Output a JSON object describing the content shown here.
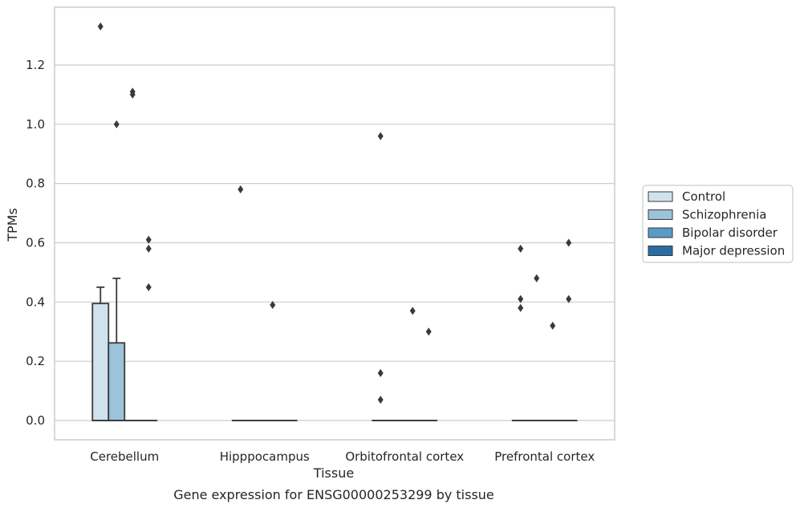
{
  "chart_data": {
    "type": "box",
    "caption": "Gene expression for ENSG00000253299 by tissue",
    "xlabel": "Tissue",
    "ylabel": "TPMs",
    "ylim": [
      -0.065,
      1.395
    ],
    "yticks": [
      0.0,
      0.2,
      0.4,
      0.6,
      0.8,
      1.0,
      1.2
    ],
    "ytick_labels": [
      "0.0",
      "0.2",
      "0.4",
      "0.6",
      "0.8",
      "1.0",
      "1.2"
    ],
    "grid": "horizontal",
    "legend_position": "right",
    "categories": [
      "Cerebellum",
      "Hipppocampus",
      "Orbitofrontal cortex",
      "Prefrontal cortex"
    ],
    "series": [
      {
        "name": "Control",
        "color": "#d1e2ef",
        "boxes": [
          {
            "q1": 0.0,
            "median": 0.0,
            "q3": 0.395,
            "whisker_low": 0.0,
            "whisker_high": 0.45,
            "outliers": [
              1.33
            ]
          },
          {
            "q1": 0.0,
            "median": 0.0,
            "q3": 0.0,
            "whisker_low": 0.0,
            "whisker_high": 0.0,
            "outliers": [
              0.78
            ]
          },
          {
            "q1": 0.0,
            "median": 0.0,
            "q3": 0.0,
            "whisker_low": 0.0,
            "whisker_high": 0.0,
            "outliers": [
              0.96,
              0.16,
              0.07
            ]
          },
          {
            "q1": 0.0,
            "median": 0.0,
            "q3": 0.0,
            "whisker_low": 0.0,
            "whisker_high": 0.0,
            "outliers": [
              0.58,
              0.41,
              0.38
            ]
          }
        ]
      },
      {
        "name": "Schizophrenia",
        "color": "#9bc3da",
        "boxes": [
          {
            "q1": 0.0,
            "median": 0.0,
            "q3": 0.262,
            "whisker_low": 0.0,
            "whisker_high": 0.48,
            "outliers": [
              1.0
            ]
          },
          {
            "q1": 0.0,
            "median": 0.0,
            "q3": 0.0,
            "whisker_low": 0.0,
            "whisker_high": 0.0,
            "outliers": []
          },
          {
            "q1": 0.0,
            "median": 0.0,
            "q3": 0.0,
            "whisker_low": 0.0,
            "whisker_high": 0.0,
            "outliers": []
          },
          {
            "q1": 0.0,
            "median": 0.0,
            "q3": 0.0,
            "whisker_low": 0.0,
            "whisker_high": 0.0,
            "outliers": [
              0.48
            ]
          }
        ]
      },
      {
        "name": "Bipolar disorder",
        "color": "#5a9bc4",
        "boxes": [
          {
            "q1": 0.0,
            "median": 0.0,
            "q3": 0.0,
            "whisker_low": 0.0,
            "whisker_high": 0.0,
            "outliers": [
              1.11,
              1.1
            ]
          },
          {
            "q1": 0.0,
            "median": 0.0,
            "q3": 0.0,
            "whisker_low": 0.0,
            "whisker_high": 0.0,
            "outliers": [
              0.39
            ]
          },
          {
            "q1": 0.0,
            "median": 0.0,
            "q3": 0.0,
            "whisker_low": 0.0,
            "whisker_high": 0.0,
            "outliers": [
              0.37
            ]
          },
          {
            "q1": 0.0,
            "median": 0.0,
            "q3": 0.0,
            "whisker_low": 0.0,
            "whisker_high": 0.0,
            "outliers": [
              0.32
            ]
          }
        ]
      },
      {
        "name": "Major depression",
        "color": "#2b6ca5",
        "boxes": [
          {
            "q1": 0.0,
            "median": 0.0,
            "q3": 0.0,
            "whisker_low": 0.0,
            "whisker_high": 0.0,
            "outliers": [
              0.61,
              0.58,
              0.45
            ]
          },
          {
            "q1": 0.0,
            "median": 0.0,
            "q3": 0.0,
            "whisker_low": 0.0,
            "whisker_high": 0.0,
            "outliers": []
          },
          {
            "q1": 0.0,
            "median": 0.0,
            "q3": 0.0,
            "whisker_low": 0.0,
            "whisker_high": 0.0,
            "outliers": [
              0.3
            ]
          },
          {
            "q1": 0.0,
            "median": 0.0,
            "q3": 0.0,
            "whisker_low": 0.0,
            "whisker_high": 0.0,
            "outliers": [
              0.6,
              0.41
            ]
          }
        ]
      }
    ],
    "colors": {
      "line": "#3a3a3a",
      "grid": "#cccccc",
      "frame": "#cccccc",
      "outlier": "#3a3a3a"
    }
  }
}
